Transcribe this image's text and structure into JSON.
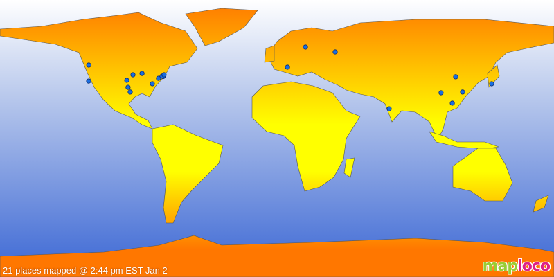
{
  "caption": "21 places mapped @ 2:44 pm EST Jan 2",
  "logo": {
    "part1": "map",
    "part2": "loco"
  },
  "colors": {
    "ocean_top": "#ffffff",
    "ocean_bottom": "#3a66d4",
    "land_edge": "#ff7700",
    "land_center": "#ffff00",
    "marker": "#1a6ee0"
  },
  "marker_icon": "circle-dot",
  "places": [
    {
      "lon": -122.3,
      "lat": 48.2
    },
    {
      "lon": -122.4,
      "lat": 37.7
    },
    {
      "lon": -93.6,
      "lat": 41.8
    },
    {
      "lon": -87.7,
      "lat": 42.7
    },
    {
      "lon": -97.6,
      "lat": 38.2
    },
    {
      "lon": -96.8,
      "lat": 33.6
    },
    {
      "lon": -95.4,
      "lat": 30.5
    },
    {
      "lon": -81.0,
      "lat": 35.9
    },
    {
      "lon": -77.0,
      "lat": 39.5
    },
    {
      "lon": -74.7,
      "lat": 40.9
    },
    {
      "lon": -74.0,
      "lat": 40.7
    },
    {
      "lon": -73.4,
      "lat": 41.8
    },
    {
      "lon": 6.8,
      "lat": 46.8
    },
    {
      "lon": 18.5,
      "lat": 60.0
    },
    {
      "lon": 37.8,
      "lat": 56.8
    },
    {
      "lon": 72.9,
      "lat": 19.5
    },
    {
      "lon": 106.6,
      "lat": 30.0
    },
    {
      "lon": 116.1,
      "lat": 40.5
    },
    {
      "lon": 120.6,
      "lat": 30.5
    },
    {
      "lon": 113.9,
      "lat": 23.2
    },
    {
      "lon": 139.5,
      "lat": 35.9
    }
  ]
}
